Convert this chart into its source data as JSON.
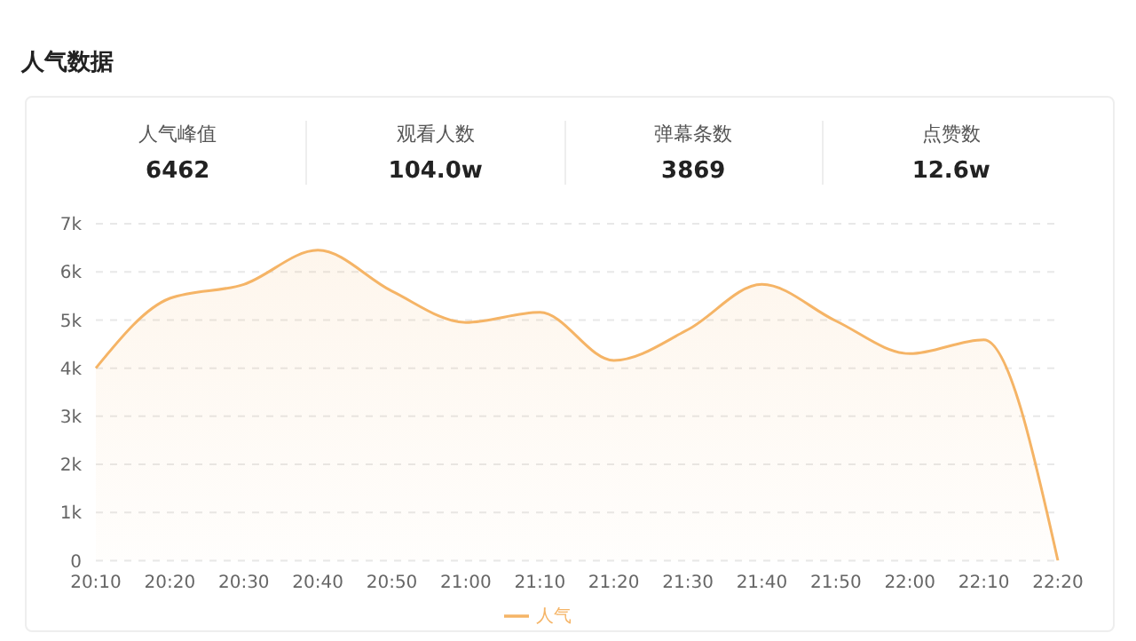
{
  "chart_data": {
    "type": "area",
    "title": "人气数据",
    "annotations": [
      "人气峰值",
      "6462",
      "观看人数",
      "104.0w",
      "弹幕条数",
      "3869",
      "点赞数",
      "12.6w"
    ],
    "categories": [
      "20:10",
      "20:20",
      "20:30",
      "20:40",
      "20:50",
      "21:00",
      "21:10",
      "21:20",
      "21:30",
      "21:40",
      "21:50",
      "22:00",
      "22:10",
      "22:20"
    ],
    "series": [
      {
        "name": "人气",
        "color": "#f5b466",
        "values": [
          4000,
          5450,
          5740,
          6450,
          5600,
          4950,
          5160,
          4160,
          4800,
          5740,
          4980,
          4300,
          4590,
          0
        ]
      }
    ],
    "ylim": [
      0,
      7000
    ],
    "yticks": [
      0,
      {
        "value": 1000,
        "label": "1k"
      },
      {
        "value": 2000,
        "label": "2k"
      },
      {
        "value": 3000,
        "label": "3k"
      },
      {
        "value": 4000,
        "label": "4k"
      },
      {
        "value": 5000,
        "label": "5k"
      },
      {
        "value": 6000,
        "label": "6k"
      },
      {
        "value": 7000,
        "label": "7k"
      }
    ],
    "grid": "y",
    "legend": "bottom",
    "marker": "none",
    "line_style": "solid"
  }
}
